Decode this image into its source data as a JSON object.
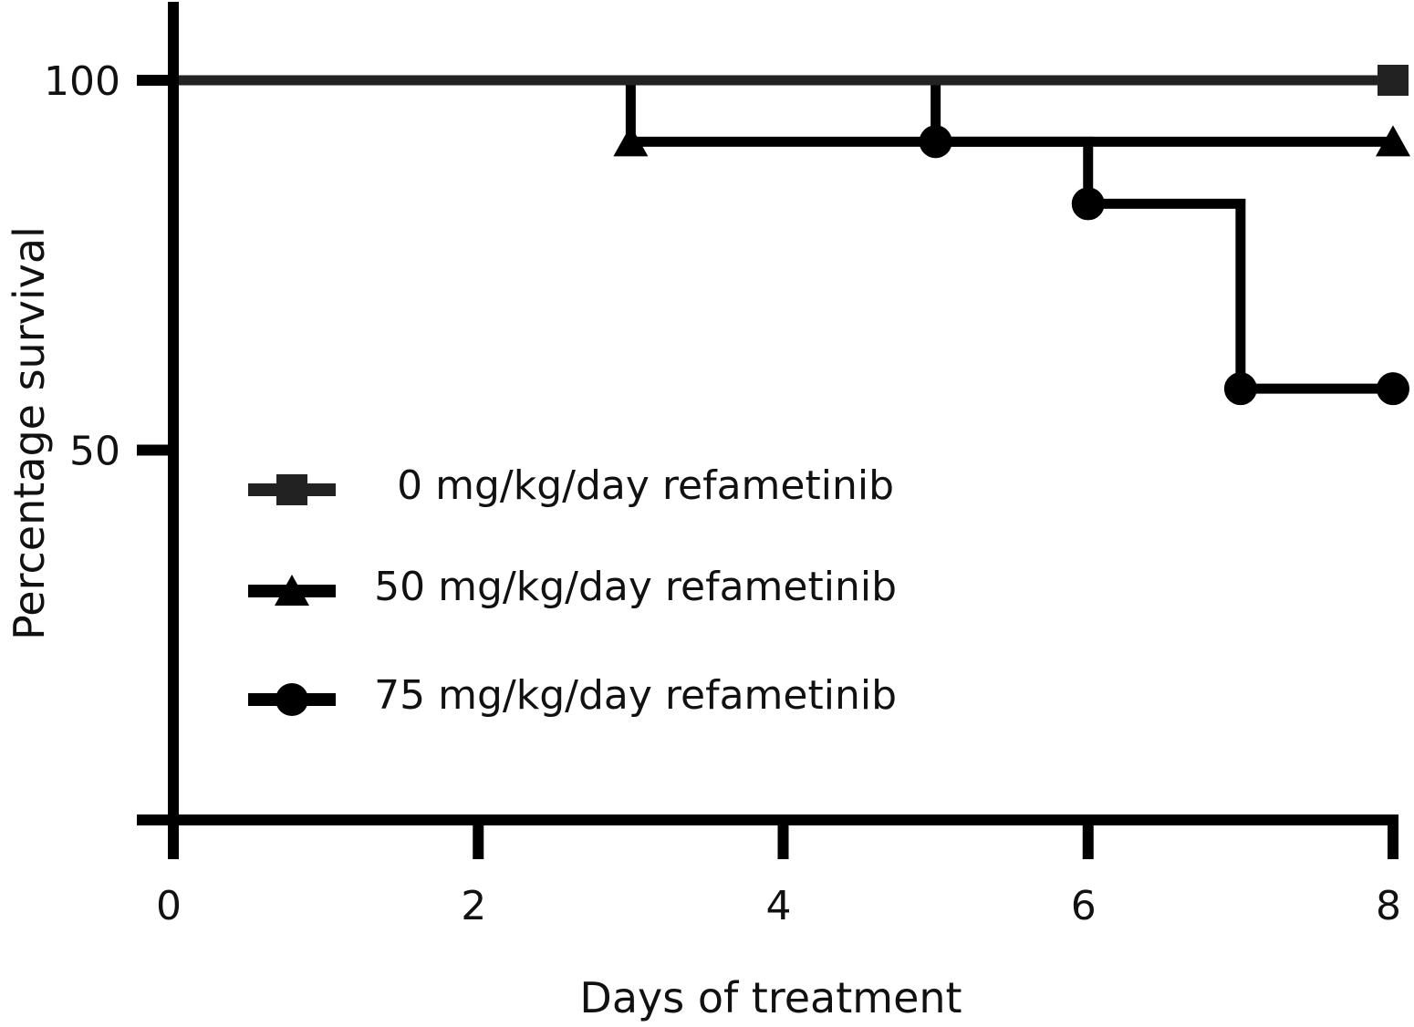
{
  "chart_data": {
    "type": "line",
    "subtype": "kaplan-meier step",
    "title": "",
    "xlabel": "Days of treatment",
    "ylabel": "Percentage survival",
    "xlim": [
      0,
      8
    ],
    "ylim": [
      0,
      100
    ],
    "x_ticks": [
      0,
      2,
      4,
      6,
      8
    ],
    "x_tick_labels": [
      "0",
      "2",
      "4",
      "6",
      "8"
    ],
    "y_ticks": [
      0,
      50,
      100
    ],
    "y_tick_labels": [
      "",
      "50",
      "100"
    ],
    "grid": false,
    "legend_position": "center-left",
    "series": [
      {
        "name": "0 mg/kg/day refametinib",
        "marker": "square",
        "color": "#222222",
        "x": [
          0,
          8
        ],
        "y": [
          100,
          100
        ],
        "marker_x": [
          8
        ],
        "marker_y": [
          100
        ]
      },
      {
        "name": "50 mg/kg/day refametinib",
        "marker": "triangle",
        "color": "#000000",
        "x": [
          0,
          3,
          8
        ],
        "y": [
          100,
          91.7,
          91.7
        ],
        "marker_x": [
          3,
          8
        ],
        "marker_y": [
          91.7,
          91.7
        ]
      },
      {
        "name": "75 mg/kg/day refametinib",
        "marker": "circle",
        "color": "#000000",
        "x": [
          0,
          5,
          6,
          7,
          8
        ],
        "y": [
          100,
          91.7,
          83.3,
          58.3,
          58.3
        ],
        "marker_x": [
          5,
          6,
          7,
          8
        ],
        "marker_y": [
          91.7,
          83.3,
          58.3,
          58.3
        ]
      }
    ]
  }
}
